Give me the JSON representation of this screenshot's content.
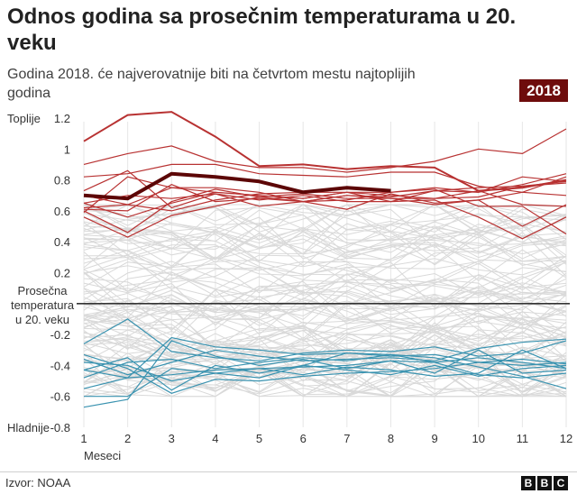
{
  "header": {
    "title": "Odnos godina sa prosečnim temperaturama u 20. veku",
    "subtitle": "Godina 2018. će najverovatnije biti na četvrtom mestu najtoplijih godina",
    "badge": "2018"
  },
  "footer": {
    "source": "Izvor: NOAA",
    "logo_letters": [
      "B",
      "B",
      "C"
    ]
  },
  "colors": {
    "warm": "#b83232",
    "highlight": "#5c0606",
    "cold": "#3a93b0",
    "neutral": "#d9d9d9",
    "baseline": "#333333"
  },
  "chart_data": {
    "type": "line",
    "title": "Odnos godina sa prosečnim temperaturama u 20. veku",
    "subtitle": "Godina 2018. će najverovatnije biti na četvrtom mestu najtoplijih godina",
    "xlabel": "Meseci",
    "ylabel": "",
    "x": [
      1,
      2,
      3,
      4,
      5,
      6,
      7,
      8,
      9,
      10,
      11,
      12
    ],
    "xtick_labels": [
      "1",
      "2",
      "3",
      "4",
      "5",
      "6",
      "7",
      "8",
      "9",
      "10",
      "11",
      "12"
    ],
    "ylim": [
      -0.8,
      1.2
    ],
    "yticks": [
      -0.8,
      -0.6,
      -0.4,
      -0.2,
      0,
      0.2,
      0.4,
      0.6,
      0.8,
      1,
      1.2
    ],
    "ytick_labels": [
      "-0.8",
      "-0.6",
      "-0.4",
      "-0.2",
      "",
      "0.2",
      "0.4",
      "0.6",
      "0.8",
      "1",
      "1.2"
    ],
    "top_label": "Toplije",
    "bottom_label": "Hladnije",
    "baseline_label": [
      "Prosečna",
      "temperatura",
      "u 20. veku"
    ],
    "grid": "vertical",
    "highlight": {
      "name": "2018",
      "values": [
        0.7,
        0.68,
        0.84,
        0.82,
        0.79,
        0.72,
        0.75,
        0.73,
        null,
        null,
        null,
        null
      ]
    },
    "warm_series": [
      {
        "name": "warm-1",
        "values": [
          1.05,
          1.22,
          1.24,
          1.08,
          0.89,
          0.9,
          0.87,
          0.89,
          0.88,
          0.73,
          0.75,
          0.8
        ]
      },
      {
        "name": "warm-2",
        "values": [
          0.9,
          0.97,
          1.02,
          0.92,
          0.88,
          0.88,
          0.85,
          0.88,
          0.92,
          1.0,
          0.97,
          1.13
        ]
      },
      {
        "name": "warm-3",
        "values": [
          0.82,
          0.84,
          0.9,
          0.9,
          0.84,
          0.83,
          0.82,
          0.85,
          0.85,
          0.76,
          0.72,
          0.82
        ]
      },
      {
        "name": "warm-4",
        "values": [
          0.59,
          0.82,
          0.75,
          0.72,
          0.7,
          0.68,
          0.72,
          0.72,
          0.75,
          0.72,
          0.77,
          0.84
        ]
      },
      {
        "name": "warm-5",
        "values": [
          0.6,
          0.46,
          0.66,
          0.74,
          0.69,
          0.66,
          0.7,
          0.68,
          0.64,
          0.67,
          0.72,
          0.7
        ]
      },
      {
        "name": "warm-6",
        "values": [
          0.56,
          0.43,
          0.57,
          0.63,
          0.69,
          0.71,
          0.68,
          0.68,
          0.68,
          0.73,
          0.64,
          0.63
        ]
      },
      {
        "name": "warm-7",
        "values": [
          0.65,
          0.56,
          0.65,
          0.72,
          0.7,
          0.68,
          0.72,
          0.7,
          0.68,
          0.69,
          0.76,
          0.78
        ]
      },
      {
        "name": "warm-8",
        "values": [
          0.73,
          0.86,
          0.62,
          0.71,
          0.63,
          0.66,
          0.67,
          0.72,
          0.74,
          0.63,
          0.63,
          0.45
        ]
      },
      {
        "name": "warm-9",
        "values": [
          0.61,
          0.6,
          0.77,
          0.66,
          0.68,
          0.66,
          0.61,
          0.71,
          0.65,
          0.67,
          0.5,
          0.64
        ]
      },
      {
        "name": "warm-10",
        "values": [
          0.65,
          0.7,
          0.68,
          0.71,
          0.67,
          0.7,
          0.66,
          0.66,
          0.67,
          0.56,
          0.42,
          0.56
        ]
      },
      {
        "name": "warm-11",
        "values": [
          0.7,
          0.64,
          0.75,
          0.75,
          0.72,
          0.66,
          0.7,
          0.69,
          0.73,
          0.72,
          0.82,
          0.79
        ]
      },
      {
        "name": "warm-12",
        "values": [
          0.62,
          0.64,
          0.6,
          0.67,
          0.71,
          0.72,
          0.72,
          0.66,
          0.73,
          0.75,
          0.76,
          0.79
        ]
      }
    ],
    "cold_series": [
      {
        "name": "cold-1",
        "values": [
          -0.38,
          -0.4,
          -0.5,
          -0.45,
          -0.42,
          -0.41,
          -0.4,
          -0.37,
          -0.38,
          -0.46,
          -0.48,
          -0.45
        ]
      },
      {
        "name": "cold-2",
        "values": [
          -0.55,
          -0.48,
          -0.22,
          -0.28,
          -0.3,
          -0.33,
          -0.32,
          -0.34,
          -0.33,
          -0.38,
          -0.36,
          -0.39
        ]
      },
      {
        "name": "cold-3",
        "values": [
          -0.6,
          -0.6,
          -0.42,
          -0.45,
          -0.48,
          -0.4,
          -0.43,
          -0.46,
          -0.4,
          -0.47,
          -0.42,
          -0.4
        ]
      },
      {
        "name": "cold-4",
        "values": [
          -0.36,
          -0.46,
          -0.38,
          -0.3,
          -0.34,
          -0.37,
          -0.36,
          -0.35,
          -0.37,
          -0.29,
          -0.25,
          -0.23
        ]
      },
      {
        "name": "cold-5",
        "values": [
          -0.67,
          -0.62,
          -0.24,
          -0.34,
          -0.4,
          -0.36,
          -0.42,
          -0.37,
          -0.45,
          -0.3,
          -0.45,
          -0.43
        ]
      },
      {
        "name": "cold-6",
        "values": [
          -0.43,
          -0.35,
          -0.56,
          -0.4,
          -0.45,
          -0.4,
          -0.32,
          -0.33,
          -0.38,
          -0.35,
          -0.38,
          -0.42
        ]
      },
      {
        "name": "cold-7",
        "values": [
          -0.26,
          -0.1,
          -0.31,
          -0.35,
          -0.37,
          -0.32,
          -0.3,
          -0.31,
          -0.28,
          -0.34,
          -0.32,
          -0.24
        ]
      },
      {
        "name": "cold-8",
        "values": [
          -0.43,
          -0.48,
          -0.46,
          -0.43,
          -0.42,
          -0.46,
          -0.41,
          -0.43,
          -0.47,
          -0.45,
          -0.3,
          -0.42
        ]
      },
      {
        "name": "cold-9",
        "values": [
          -0.48,
          -0.38,
          -0.36,
          -0.42,
          -0.38,
          -0.35,
          -0.37,
          -0.33,
          -0.35,
          -0.41,
          -0.47,
          -0.55
        ]
      },
      {
        "name": "cold-10",
        "values": [
          -0.33,
          -0.42,
          -0.58,
          -0.49,
          -0.5,
          -0.47,
          -0.45,
          -0.44,
          -0.42,
          -0.38,
          -0.4,
          -0.38
        ]
      }
    ],
    "neutral_band": {
      "count": 110,
      "min": -0.55,
      "max": 0.62
    }
  }
}
